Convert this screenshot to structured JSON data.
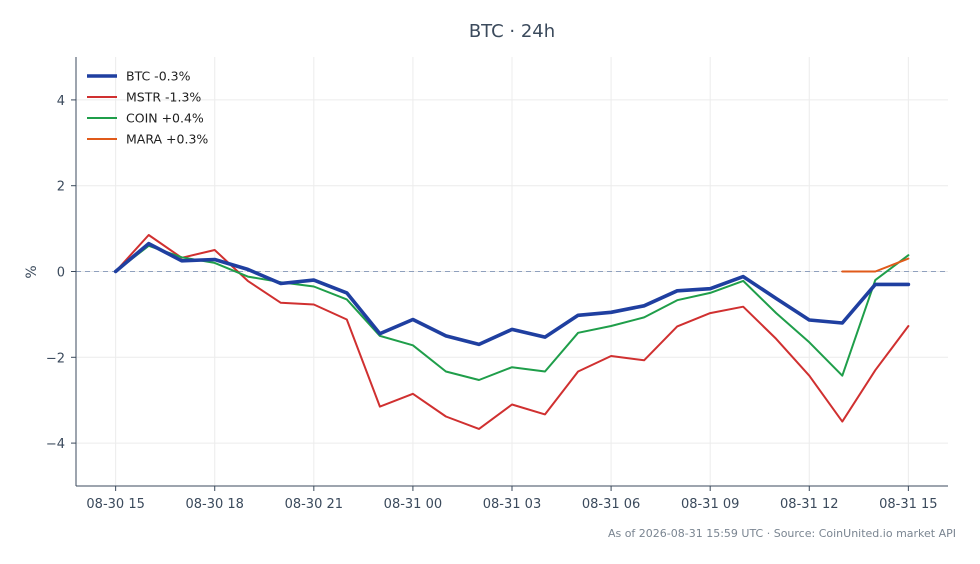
{
  "chart_data": {
    "type": "line",
    "title": "BTC · 24h",
    "ylabel": "%",
    "xlabel": "",
    "ylim": [
      -5,
      5
    ],
    "yticks": [
      -4,
      -2,
      0,
      2,
      4
    ],
    "ytick_labels": [
      "−4",
      "−2",
      "0",
      "2",
      "4"
    ],
    "x": [
      "08-30 15",
      "08-30 16",
      "08-30 17",
      "08-30 18",
      "08-30 19",
      "08-30 20",
      "08-30 21",
      "08-30 22",
      "08-30 23",
      "08-31 00",
      "08-31 01",
      "08-31 02",
      "08-31 03",
      "08-31 04",
      "08-31 05",
      "08-31 06",
      "08-31 07",
      "08-31 08",
      "08-31 09",
      "08-31 10",
      "08-31 11",
      "08-31 12",
      "08-31 13",
      "08-31 14",
      "08-31 15"
    ],
    "xticks": [
      "08-30 15",
      "08-30 18",
      "08-30 21",
      "08-31 00",
      "08-31 03",
      "08-31 06",
      "08-31 09",
      "08-31 12",
      "08-31 15"
    ],
    "xlim": [
      "08-30 13:48",
      "08-31 16:12"
    ],
    "grid": true,
    "zero_line": true,
    "legend_position": "top-left",
    "series": [
      {
        "name": "BTC -0.3%",
        "color": "#1f3fa0",
        "width": "thick",
        "values": [
          0.0,
          0.65,
          0.25,
          0.28,
          0.05,
          -0.28,
          -0.2,
          -0.5,
          -1.45,
          -1.12,
          -1.5,
          -1.7,
          -1.35,
          -1.53,
          -1.02,
          -0.95,
          -0.8,
          -0.45,
          -0.4,
          -0.12,
          -0.63,
          -1.13,
          -1.2,
          -0.3,
          -0.3
        ]
      },
      {
        "name": "MSTR -1.3%",
        "color": "#d03030",
        "width": "normal",
        "values": [
          0.0,
          0.85,
          0.32,
          0.5,
          -0.22,
          -0.73,
          -0.77,
          -1.12,
          -3.15,
          -2.85,
          -3.38,
          -3.67,
          -3.1,
          -3.33,
          -2.33,
          -1.97,
          -2.07,
          -1.28,
          -0.97,
          -0.82,
          -1.57,
          -2.43,
          -3.5,
          -2.3,
          -1.27
        ]
      },
      {
        "name": "COIN +0.4%",
        "color": "#1f9e4a",
        "width": "normal",
        "values": [
          0.0,
          0.6,
          0.33,
          0.2,
          -0.12,
          -0.25,
          -0.35,
          -0.65,
          -1.5,
          -1.72,
          -2.33,
          -2.53,
          -2.23,
          -2.33,
          -1.43,
          -1.27,
          -1.07,
          -0.67,
          -0.5,
          -0.22,
          -0.97,
          -1.65,
          -2.43,
          -0.2,
          0.38
        ]
      },
      {
        "name": "MARA +0.3%",
        "color": "#e05a1a",
        "width": "normal",
        "values": [
          null,
          null,
          null,
          null,
          null,
          null,
          null,
          null,
          null,
          null,
          null,
          null,
          null,
          null,
          null,
          null,
          null,
          null,
          null,
          null,
          null,
          null,
          0.0,
          0.0,
          0.3
        ]
      }
    ]
  },
  "footer": "As of 2026-08-31 15:59 UTC · Source: CoinUnited.io market API"
}
